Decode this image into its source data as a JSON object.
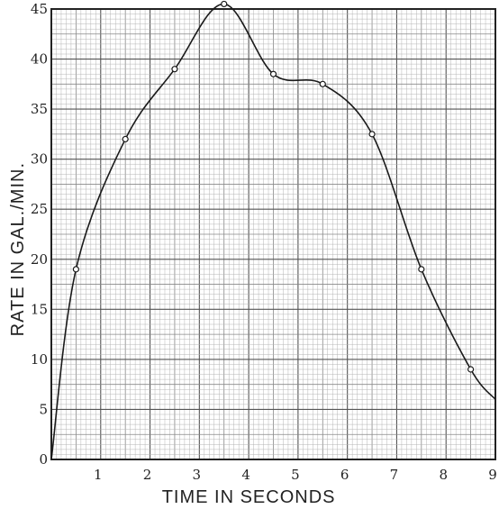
{
  "chart_data": {
    "type": "line",
    "xlabel": "TIME IN SECONDS",
    "ylabel": "RATE IN GAL./MIN.",
    "xlim": [
      0,
      9
    ],
    "ylim": [
      0,
      45
    ],
    "x_ticks": [
      "1",
      "2",
      "3",
      "4",
      "5",
      "6",
      "7",
      "8",
      "9"
    ],
    "y_ticks": [
      "0",
      "5",
      "10",
      "15",
      "20",
      "25",
      "30",
      "35",
      "40",
      "45"
    ],
    "grid": true,
    "series": [
      {
        "points": [
          {
            "x": 0,
            "y": 0
          },
          {
            "x": 0.5,
            "y": 19
          },
          {
            "x": 1.5,
            "y": 32
          },
          {
            "x": 2.5,
            "y": 39
          },
          {
            "x": 3.5,
            "y": 45.5
          },
          {
            "x": 4.5,
            "y": 38.5
          },
          {
            "x": 5.5,
            "y": 37.5
          },
          {
            "x": 6.5,
            "y": 32.5
          },
          {
            "x": 7.5,
            "y": 19
          },
          {
            "x": 8.5,
            "y": 9
          },
          {
            "x": 9,
            "y": 6
          }
        ]
      }
    ]
  }
}
